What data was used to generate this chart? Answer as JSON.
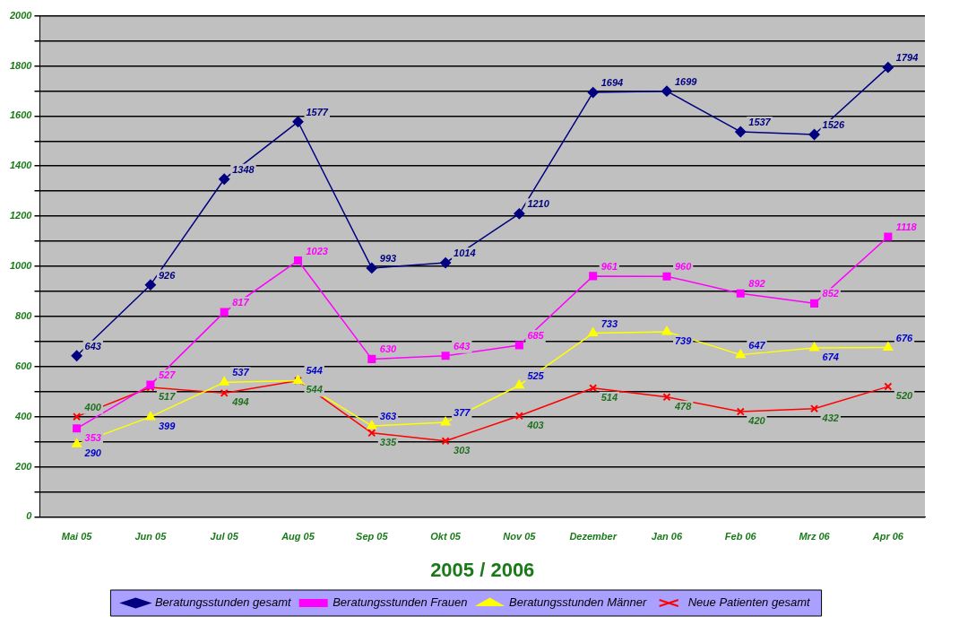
{
  "chart_data": {
    "type": "line",
    "xlabel": "2005 / 2006",
    "categories": [
      "Mai 05",
      "Jun 05",
      "Jul 05",
      "Aug 05",
      "Sep 05",
      "Okt 05",
      "Nov 05",
      "Dezember",
      "Jan 06",
      "Feb 06",
      "Mrz 06",
      "Apr 06"
    ],
    "series": [
      {
        "name": "Beratungsstunden gesamt",
        "color": "#000080",
        "marker": "diamond",
        "values": [
          643,
          926,
          1348,
          1577,
          993,
          1014,
          1210,
          1694,
          1699,
          1537,
          1526,
          1794
        ]
      },
      {
        "name": "Beratungsstunden Frauen",
        "color": "#ff00ff",
        "marker": "square",
        "values": [
          353,
          527,
          817,
          1023,
          630,
          643,
          685,
          961,
          960,
          892,
          852,
          1118
        ]
      },
      {
        "name": "Beratungsstunden Männer",
        "color": "#ffff00",
        "marker": "triangle",
        "values": [
          290,
          399,
          537,
          544,
          363,
          377,
          525,
          733,
          739,
          647,
          674,
          676
        ]
      },
      {
        "name": "Neue Patienten gesamt",
        "color": "#ff0000",
        "marker": "cross",
        "values": [
          400,
          517,
          494,
          544,
          335,
          303,
          403,
          514,
          478,
          420,
          432,
          520
        ]
      }
    ],
    "ylim": [
      0,
      2000
    ],
    "yticks": [
      0,
      {
        "value": 100,
        "label": null
      },
      200,
      {
        "value": 300,
        "label": null
      },
      400,
      {
        "value": 500,
        "label": null
      },
      600,
      {
        "value": 700,
        "label": null
      },
      800,
      {
        "value": 900,
        "label": null
      },
      1000,
      {
        "value": 1100,
        "label": null
      },
      1200,
      {
        "value": 1300,
        "label": null
      },
      1400,
      {
        "value": 1500,
        "label": null
      },
      1600,
      {
        "value": 1700,
        "label": null
      },
      1800,
      {
        "value": 1900,
        "label": null
      },
      2000
    ],
    "grid": "y",
    "legend": "bottom",
    "data_labels": true
  }
}
